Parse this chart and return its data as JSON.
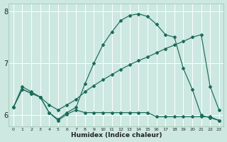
{
  "xlabel": "Humidex (Indice chaleur)",
  "bg_color": "#cce8e0",
  "grid_color": "#ffffff",
  "line_color": "#1a6b5a",
  "xlim": [
    -0.5,
    23.5
  ],
  "ylim": [
    5.78,
    8.15
  ],
  "yticks": [
    6,
    7,
    8
  ],
  "xticks": [
    0,
    1,
    2,
    3,
    4,
    5,
    6,
    7,
    8,
    9,
    10,
    11,
    12,
    13,
    14,
    15,
    16,
    17,
    18,
    19,
    20,
    21,
    22,
    23
  ],
  "series1_x": [
    0,
    1,
    2,
    3,
    4,
    5,
    6,
    7,
    8,
    9,
    10,
    11,
    12,
    13,
    14,
    15,
    16,
    17,
    18,
    19,
    20,
    21,
    22,
    23
  ],
  "series1_y": [
    6.15,
    6.55,
    6.45,
    6.35,
    6.05,
    5.92,
    6.05,
    6.15,
    6.6,
    7.0,
    7.35,
    7.6,
    7.82,
    7.92,
    7.95,
    7.9,
    7.75,
    7.55,
    7.5,
    6.9,
    6.5,
    6.0,
    5.95,
    5.9
  ],
  "series2_x": [
    0,
    1,
    2,
    3,
    4,
    5,
    6,
    7,
    8,
    9,
    10,
    11,
    12,
    13,
    14,
    15,
    16,
    17,
    18,
    19,
    20,
    21,
    22,
    23
  ],
  "series2_y": [
    6.15,
    6.5,
    6.42,
    6.35,
    6.2,
    6.1,
    6.2,
    6.3,
    6.45,
    6.57,
    6.68,
    6.78,
    6.88,
    6.97,
    7.05,
    7.12,
    7.2,
    7.28,
    7.35,
    7.42,
    7.5,
    7.55,
    6.55,
    6.1
  ],
  "series3_x": [
    0,
    1,
    2,
    3,
    4,
    5,
    6,
    7,
    8,
    9,
    10,
    11,
    12,
    13,
    14,
    15,
    16,
    17,
    18,
    19,
    20,
    21,
    22,
    23
  ],
  "series3_y": [
    6.15,
    6.5,
    6.42,
    6.35,
    6.05,
    5.9,
    6.02,
    6.1,
    6.05,
    6.05,
    6.05,
    6.05,
    6.05,
    6.05,
    6.05,
    6.05,
    5.97,
    5.97,
    5.97,
    5.97,
    5.97,
    5.97,
    5.97,
    5.9
  ]
}
